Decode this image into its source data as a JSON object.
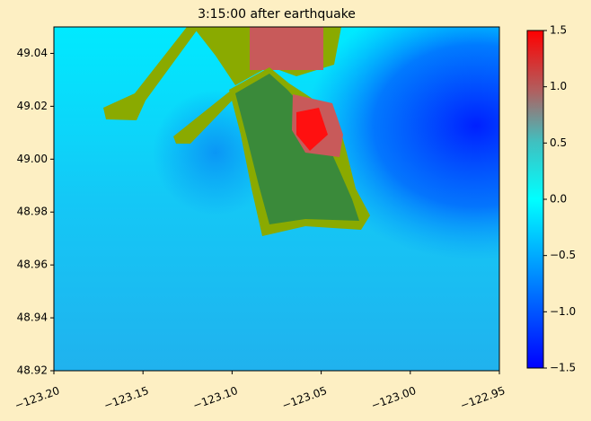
{
  "chart_data": {
    "type": "heatmap",
    "title": "3:15:00 after earthquake",
    "xlim": [
      -123.2,
      -122.95
    ],
    "xticks": [
      {
        "value": -123.2,
        "label": "−123.20"
      },
      {
        "value": -123.15,
        "label": "−123.15"
      },
      {
        "value": -123.1,
        "label": "−123.10"
      },
      {
        "value": -123.05,
        "label": "−123.05"
      },
      {
        "value": -123.0,
        "label": "−123.00"
      },
      {
        "value": -122.95,
        "label": "−122.95"
      }
    ],
    "ylim": [
      48.92,
      49.05
    ],
    "yticks": [
      48.92,
      48.94,
      48.96,
      48.98,
      {
        "value": 49.0,
        "label": "49.00"
      },
      49.02,
      49.04
    ],
    "clim": [
      -1.5,
      1.5
    ],
    "cticks": [
      {
        "value": -1.5,
        "label": "−1.5"
      },
      {
        "value": -1.0,
        "label": "−1.0"
      },
      {
        "value": -0.5,
        "label": "−0.5"
      },
      {
        "value": 0.0,
        "label": "0.0"
      },
      0.5,
      {
        "value": 1.0,
        "label": "1.0"
      },
      1.5
    ]
  }
}
